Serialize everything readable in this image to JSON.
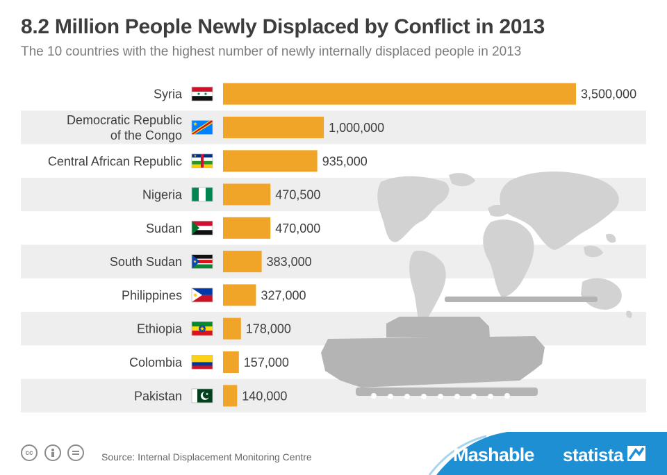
{
  "header": {
    "title": "8.2 Million People Newly Displaced by Conflict in 2013",
    "subtitle": "The 10 countries with the highest number of newly internally displaced people in 2013"
  },
  "footer": {
    "source": "Source: Internal Displacement Monitoring Centre",
    "license_icons": [
      "cc-icon",
      "person-icon",
      "equals-icon"
    ],
    "brand_mashable": "Mashable",
    "brand_statista": "statista"
  },
  "colors": {
    "bar": "#f0a528",
    "row_stripe": "#eeeeee",
    "map": "#d2d2d2",
    "tank": "#b4b4b4",
    "brand_blue": "#1f8fd4"
  },
  "chart_data": {
    "type": "bar",
    "orientation": "horizontal",
    "title": "8.2 Million People Newly Displaced by Conflict in 2013",
    "subtitle": "The 10 countries with the highest number of newly internally displaced people in 2013",
    "categories": [
      "Syria",
      "Democratic Republic of the Congo",
      "Central African Republic",
      "Nigeria",
      "Sudan",
      "South Sudan",
      "Philippines",
      "Ethiopia",
      "Colombia",
      "Pakistan"
    ],
    "category_lines": [
      [
        "Syria"
      ],
      [
        "Democratic Republic",
        "of the Congo"
      ],
      [
        "Central African Republic"
      ],
      [
        "Nigeria"
      ],
      [
        "Sudan"
      ],
      [
        "South Sudan"
      ],
      [
        "Philippines"
      ],
      [
        "Ethiopia"
      ],
      [
        "Colombia"
      ],
      [
        "Pakistan"
      ]
    ],
    "values": [
      3500000,
      1000000,
      935000,
      470500,
      470000,
      383000,
      327000,
      178000,
      157000,
      140000
    ],
    "value_labels": [
      "3,500,000",
      "1,000,000",
      "935,000",
      "470,500",
      "470,000",
      "383,000",
      "327,000",
      "178,000",
      "157,000",
      "140,000"
    ],
    "flags": [
      "syria-flag-icon",
      "dr-congo-flag-icon",
      "central-african-republic-flag-icon",
      "nigeria-flag-icon",
      "sudan-flag-icon",
      "south-sudan-flag-icon",
      "philippines-flag-icon",
      "ethiopia-flag-icon",
      "colombia-flag-icon",
      "pakistan-flag-icon"
    ],
    "xlim": [
      0,
      3500000
    ],
    "grid": false,
    "legend": "none"
  }
}
